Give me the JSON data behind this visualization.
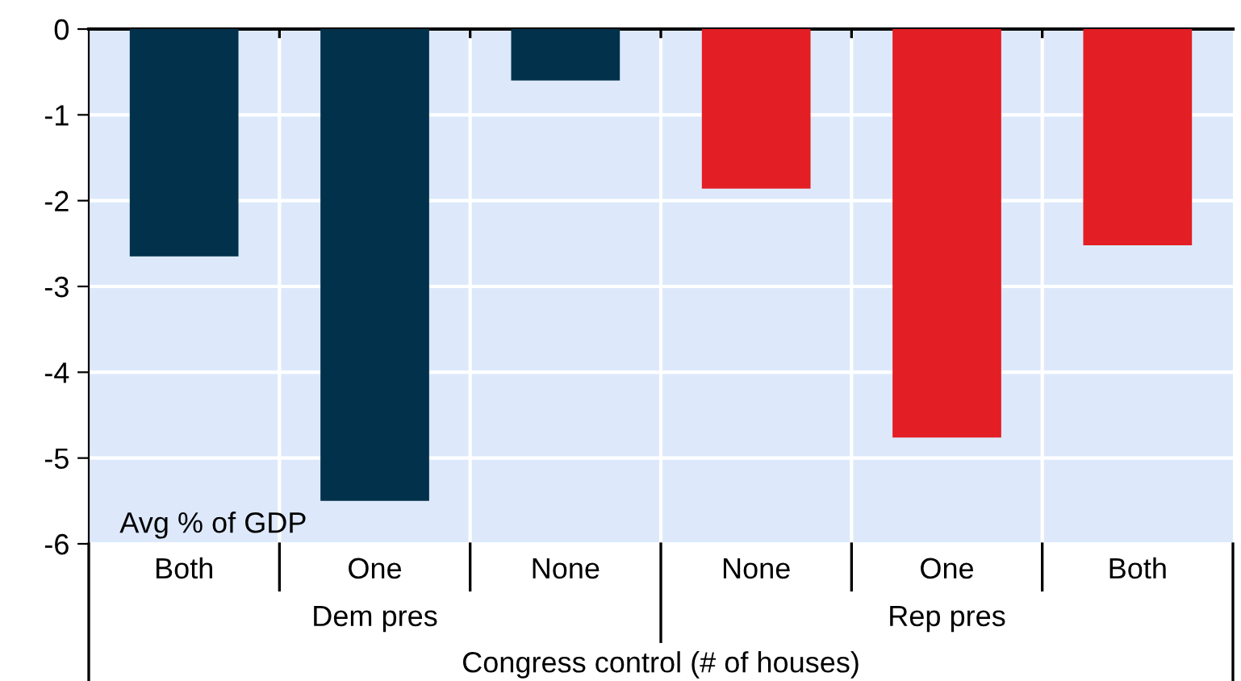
{
  "chart_data": {
    "type": "bar",
    "categories": [
      "Both",
      "One",
      "None",
      "None",
      "One",
      "Both"
    ],
    "values": [
      -2.65,
      -5.5,
      -0.6,
      -1.86,
      -4.76,
      -2.52
    ],
    "colors": [
      "#02314b",
      "#02314b",
      "#02314b",
      "#e31e24",
      "#e31e24",
      "#e31e24"
    ],
    "ylim": [
      -6,
      0
    ],
    "yticks": [
      -6,
      -5,
      -4,
      -3,
      -2,
      -1,
      0
    ],
    "grid": true,
    "ylabel": "Avg % of GDP",
    "xlabel": "Congress control (# of houses)",
    "annotations": [
      "Dem pres",
      "Rep pres"
    ]
  }
}
